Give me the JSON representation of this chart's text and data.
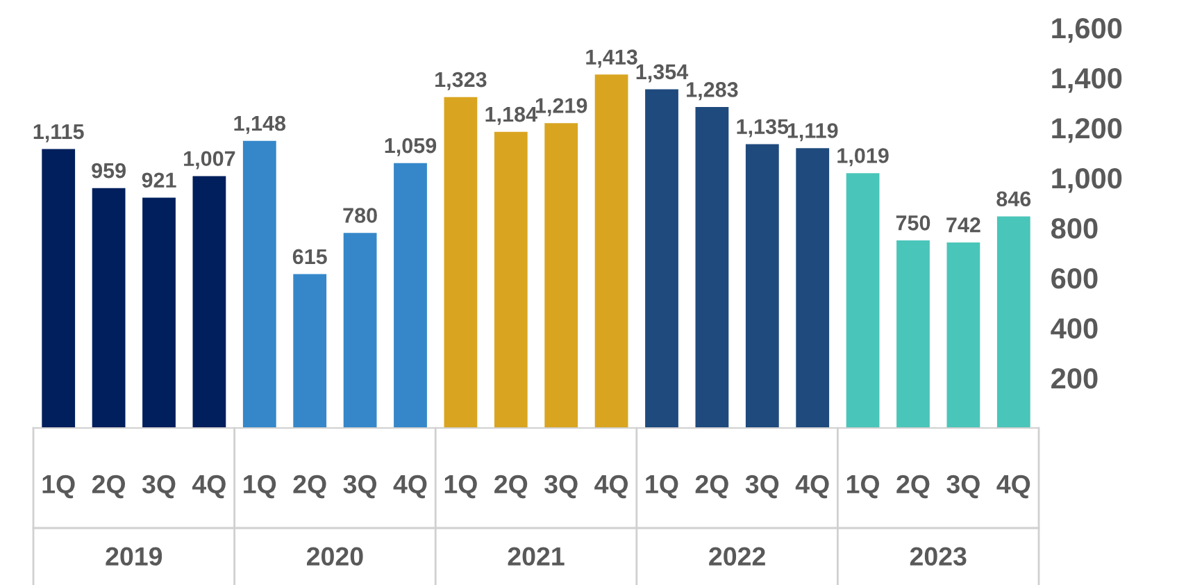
{
  "chart_data": {
    "type": "bar",
    "categories": [
      "1Q",
      "2Q",
      "3Q",
      "4Q",
      "1Q",
      "2Q",
      "3Q",
      "4Q",
      "1Q",
      "2Q",
      "3Q",
      "4Q",
      "1Q",
      "2Q",
      "3Q",
      "4Q",
      "1Q",
      "2Q",
      "3Q",
      "4Q"
    ],
    "values": [
      1115,
      959,
      921,
      1007,
      1148,
      615,
      780,
      1059,
      1323,
      1184,
      1219,
      1413,
      1354,
      1283,
      1135,
      1119,
      1019,
      750,
      742,
      846
    ],
    "colors": [
      "#001f5c",
      "#001f5c",
      "#001f5c",
      "#001f5c",
      "#3587c9",
      "#3587c9",
      "#3587c9",
      "#3587c9",
      "#d9a521",
      "#d9a521",
      "#d9a521",
      "#d9a521",
      "#1f4a7d",
      "#1f4a7d",
      "#1f4a7d",
      "#1f4a7d",
      "#4ac5b9",
      "#4ac5b9",
      "#4ac5b9",
      "#4ac5b9"
    ],
    "annotations": [
      "2019",
      "2020",
      "2021",
      "2022",
      "2023"
    ],
    "ylim": [
      0,
      1600
    ],
    "yticks": [
      200,
      400,
      600,
      800,
      {
        "value": 1000,
        "label": "1,000"
      },
      {
        "value": 1200,
        "label": "1,200"
      },
      {
        "value": 1400,
        "label": "1,400"
      },
      {
        "value": 1600,
        "label": "1,600"
      }
    ],
    "value_labels": [
      "1,115",
      "959",
      "921",
      "1,007",
      "1,148",
      "615",
      "780",
      "1,059",
      "1,323",
      "1,184",
      "1,219",
      "1,413",
      "1,354",
      "1,283",
      "1,135",
      "1,119",
      "1,019",
      "750",
      "742",
      "846"
    ],
    "grid": false,
    "legend": false
  }
}
